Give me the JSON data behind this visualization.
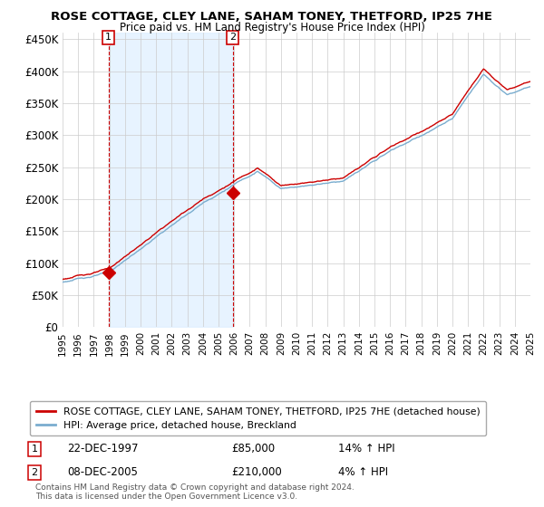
{
  "title": "ROSE COTTAGE, CLEY LANE, SAHAM TONEY, THETFORD, IP25 7HE",
  "subtitle": "Price paid vs. HM Land Registry's House Price Index (HPI)",
  "red_label": "ROSE COTTAGE, CLEY LANE, SAHAM TONEY, THETFORD, IP25 7HE (detached house)",
  "blue_label": "HPI: Average price, detached house, Breckland",
  "annotation1_date": "22-DEC-1997",
  "annotation1_price": "£85,000",
  "annotation1_hpi": "14% ↑ HPI",
  "annotation1_year": 1997.95,
  "annotation1_value": 85000,
  "annotation2_date": "08-DEC-2005",
  "annotation2_price": "£210,000",
  "annotation2_hpi": "4% ↑ HPI",
  "annotation2_year": 2005.92,
  "annotation2_value": 210000,
  "footer": "Contains HM Land Registry data © Crown copyright and database right 2024.\nThis data is licensed under the Open Government Licence v3.0.",
  "ylim": [
    0,
    460000
  ],
  "yticks": [
    0,
    50000,
    100000,
    150000,
    200000,
    250000,
    300000,
    350000,
    400000,
    450000
  ],
  "ylabels": [
    "£0",
    "£50K",
    "£100K",
    "£150K",
    "£200K",
    "£250K",
    "£300K",
    "£350K",
    "£400K",
    "£450K"
  ],
  "year_start": 1995,
  "year_end": 2025,
  "red_color": "#cc0000",
  "blue_color": "#7aadcf",
  "shade_color": "#ddeeff",
  "dashed_color": "#cc0000",
  "bg_color": "#ffffff",
  "grid_color": "#cccccc"
}
